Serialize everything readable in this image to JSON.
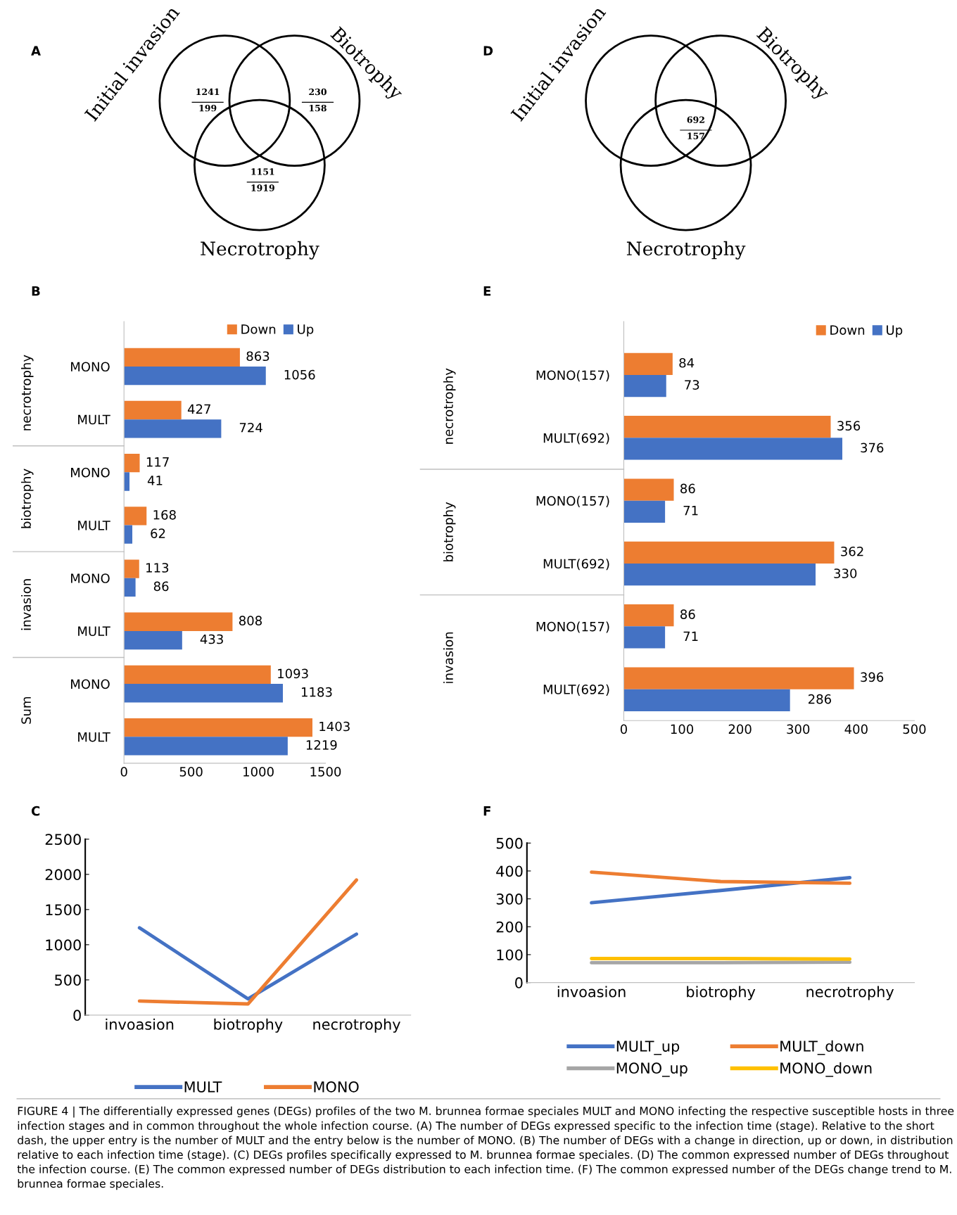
{
  "chart_data": [
    {
      "type": "other",
      "title": "A",
      "categories": [
        "Initial invasion",
        "Biotrophy",
        "Necrotrophy"
      ],
      "annotations": [
        "1241",
        "199",
        "230",
        "158",
        "1151",
        "1919"
      ]
    },
    {
      "type": "other",
      "title": "D",
      "categories": [
        "Initial invasion",
        "Biotrophy",
        "Necrotrophy"
      ],
      "annotations": [
        "692",
        "157"
      ]
    },
    {
      "type": "bar",
      "title": "B",
      "orientation": "horizontal",
      "categories": [
        "MONO",
        "MULT",
        "MONO",
        "MULT",
        "MONO",
        "MULT",
        "MONO",
        "MULT"
      ],
      "annotations": [
        "necrotrophy",
        "biotrophy",
        "invasion",
        "Sum"
      ],
      "series": [
        {
          "name": "Down",
          "color": "#ed7d31",
          "values": [
            863,
            427,
            117,
            168,
            113,
            808,
            1093,
            1403
          ]
        },
        {
          "name": "Up",
          "color": "#4472c4",
          "values": [
            1056,
            724,
            41,
            62,
            86,
            433,
            1183,
            1219
          ]
        }
      ],
      "xlim": [
        0,
        1500
      ],
      "xticks": [
        0,
        500,
        1000,
        1500
      ],
      "data_labels": true,
      "legend": "top right",
      "grid": false
    },
    {
      "type": "bar",
      "title": "E",
      "orientation": "horizontal",
      "categories": [
        "MONO(157)",
        "MULT(692)",
        "MONO(157)",
        "MULT(692)",
        "MONO(157)",
        "MULT(692)"
      ],
      "annotations": [
        "necrotrophy",
        "biotrophy",
        "invasion"
      ],
      "series": [
        {
          "name": "Down",
          "color": "#ed7d31",
          "values": [
            84,
            356,
            86,
            362,
            86,
            396
          ]
        },
        {
          "name": "Up",
          "color": "#4472c4",
          "values": [
            73,
            376,
            71,
            330,
            71,
            286
          ]
        }
      ],
      "xlim": [
        0,
        500
      ],
      "xticks": [
        0,
        100,
        200,
        300,
        400,
        500
      ],
      "data_labels": true,
      "legend": "top right",
      "grid": false
    },
    {
      "type": "line",
      "title": "C",
      "categories": [
        "invoasion",
        "biotrophy",
        "necrotrophy"
      ],
      "series": [
        {
          "name": "MULT",
          "color": "#4472c4",
          "values": [
            1241,
            230,
            1151
          ]
        },
        {
          "name": "MONO",
          "color": "#ed7d31",
          "values": [
            199,
            158,
            1919
          ]
        }
      ],
      "ylim": [
        0,
        2500
      ],
      "yticks": [
        0,
        500,
        1000,
        1500,
        2000,
        2500
      ],
      "legend": "bottom",
      "grid": false,
      "marker": "none",
      "line_style": "solid"
    },
    {
      "type": "line",
      "title": "F",
      "categories": [
        "invoasion",
        "biotrophy",
        "necrotrophy"
      ],
      "series": [
        {
          "name": "MULT_up",
          "color": "#4472c4",
          "values": [
            286,
            330,
            376
          ]
        },
        {
          "name": "MULT_down",
          "color": "#ed7d31",
          "values": [
            396,
            362,
            356
          ]
        },
        {
          "name": "MONO_up",
          "color": "#a5a5a5",
          "values": [
            71,
            71,
            73
          ]
        },
        {
          "name": "MONO_down",
          "color": "#ffc000",
          "values": [
            86,
            86,
            84
          ]
        }
      ],
      "ylim": [
        0,
        500
      ],
      "yticks": [
        0,
        100,
        200,
        300,
        400,
        500
      ],
      "legend": "bottom",
      "grid": false,
      "marker": "none",
      "line_style": "solid"
    },
    {
      "type": "other",
      "annotations": [
        "FIGURE 4 | The differentially expressed genes (DEGs) profiles of the two M. brunnea formae speciales MULT and MONO infecting the respective susceptible hosts in three infection stages and in common throughout the whole infection course. (A) The number of DEGs expressed specific to the infection time (stage). Relative to the short dash, the upper entry is the number of MULT and the entry below is the number of MONO. (B) The number of DEGs with a change in direction, up or down, in distribution relative to each infection time (stage). (C) DEGs profiles specifically expressed to M. brunnea formae speciales. (D) The common expressed number of DEGs throughout the infection course. (E) The common expressed number of DEGs distribution to each infection time. (F) The common expressed number of the DEGs change trend to M. brunnea formae speciales."
      ]
    }
  ]
}
